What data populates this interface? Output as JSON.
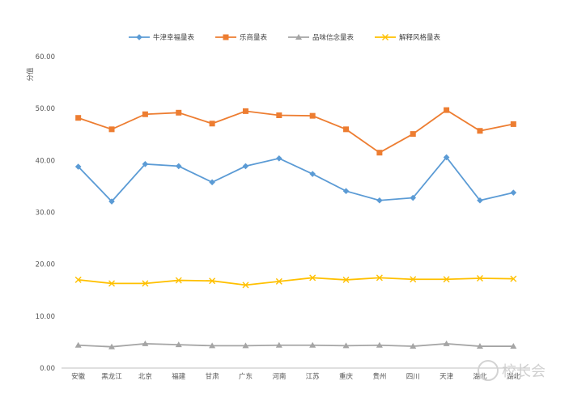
{
  "chart_data": {
    "type": "line",
    "title": "",
    "xlabel": "",
    "ylabel": "分值",
    "ylim": [
      0,
      60
    ],
    "ytick_step": 10,
    "ytick_labels": [
      "0.00",
      "10.00",
      "20.00",
      "30.00",
      "40.00",
      "50.00",
      "60.00"
    ],
    "categories": [
      "安徽",
      "黑龙江",
      "北京",
      "福建",
      "甘肃",
      "广东",
      "河南",
      "江苏",
      "重庆",
      "贵州",
      "四川",
      "天津",
      "湖北",
      "湖北"
    ],
    "series": [
      {
        "name": "牛津幸福量表",
        "color": "#5b9bd5",
        "marker": "diamond",
        "values": [
          38.8,
          32.1,
          39.3,
          38.9,
          35.8,
          38.9,
          40.4,
          37.4,
          34.1,
          32.3,
          32.8,
          40.6,
          32.3,
          33.8
        ]
      },
      {
        "name": "乐商量表",
        "color": "#ed7d31",
        "marker": "square",
        "values": [
          48.2,
          46.0,
          48.9,
          49.2,
          47.1,
          49.5,
          48.7,
          48.6,
          46.0,
          41.5,
          45.1,
          49.7,
          45.7,
          47.0
        ]
      },
      {
        "name": "品味信念量表",
        "color": "#a5a5a5",
        "marker": "triangle",
        "values": [
          4.4,
          4.1,
          4.7,
          4.5,
          4.3,
          4.3,
          4.4,
          4.4,
          4.3,
          4.4,
          4.2,
          4.7,
          4.2,
          4.2
        ]
      },
      {
        "name": "解释风格量表",
        "color": "#ffc000",
        "marker": "x",
        "values": [
          17.0,
          16.3,
          16.3,
          16.9,
          16.8,
          16.0,
          16.7,
          17.4,
          17.0,
          17.4,
          17.1,
          17.1,
          17.3,
          17.2
        ]
      }
    ]
  },
  "watermark": {
    "text": "校长会",
    "icon": "wechat-icon"
  }
}
